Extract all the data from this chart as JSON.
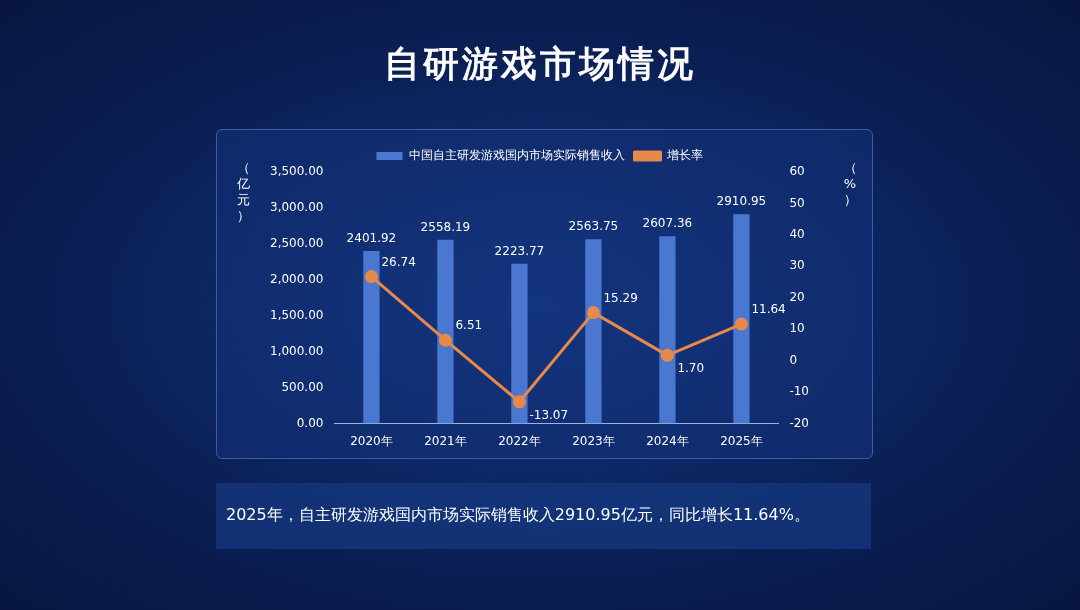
{
  "chart_data": {
    "type": "bar",
    "title": "自研游戏市场情况",
    "categories": [
      "2020年",
      "2021年",
      "2022年",
      "2023年",
      "2024年",
      "2025年"
    ],
    "series": [
      {
        "name": "中国自主研发游戏国内市场实际销售收入",
        "color": "#4a78d0",
        "values": [
          2401.92,
          2558.19,
          2223.77,
          2563.75,
          2607.36,
          2910.95
        ],
        "value_labels": [
          "2401.92",
          "2558.19",
          "2223.77",
          "2563.75",
          "2607.36",
          "2910.95"
        ]
      },
      {
        "name": "增长率",
        "type": "line",
        "axis": "y2",
        "color": "#e8894a",
        "values": [
          26.74,
          6.51,
          -13.07,
          15.29,
          1.7,
          11.64
        ],
        "value_labels": [
          "26.74",
          "6.51",
          "-13.07",
          "15.29",
          "1.70",
          "11.64"
        ]
      }
    ],
    "ylabel": "（亿元）",
    "y2label": "（%）",
    "ylim": [
      0,
      3500
    ],
    "yticks": [
      {
        "value": 0,
        "label": "0.00"
      },
      {
        "value": 500,
        "label": "500.00"
      },
      {
        "value": 1000,
        "label": "1,000.00"
      },
      {
        "value": 1500,
        "label": "1,500.00"
      },
      {
        "value": 2000,
        "label": "2,000.00"
      },
      {
        "value": 2500,
        "label": "2,500.00"
      },
      {
        "value": 3000,
        "label": "3,000.00"
      },
      {
        "value": 3500,
        "label": "3,500.00"
      }
    ],
    "y2lim": [
      -20,
      60
    ],
    "y2ticks": [
      -20,
      -10,
      0,
      10,
      20,
      30,
      40,
      50,
      60
    ],
    "grid": false,
    "legend": "top",
    "marker": "circle",
    "line_style": "solid",
    "annotations": [
      "2025年，自主研发游戏国内市场实际销售收入2910.95亿元，同比增长11.64%。"
    ]
  }
}
